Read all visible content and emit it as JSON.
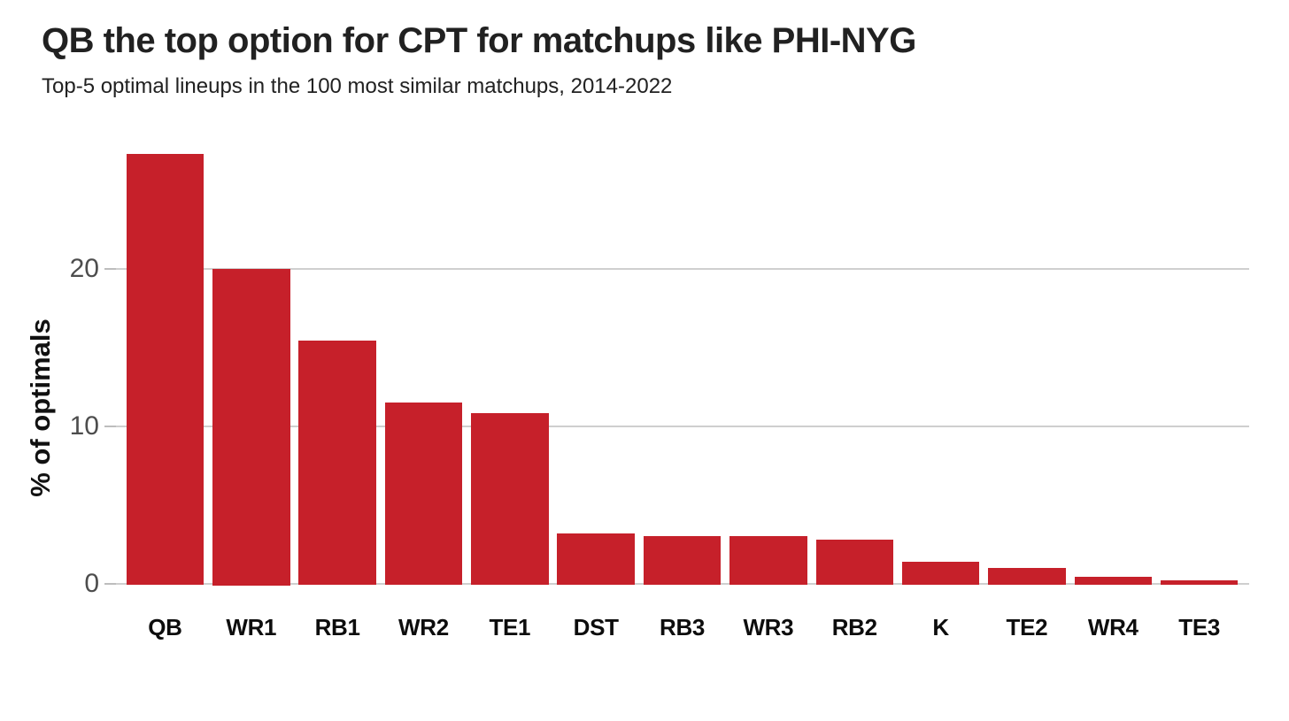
{
  "chart": {
    "title": "QB the top option for CPT for matchups like PHI-NYG",
    "subtitle": "Top-5 optimal lineups in the 100 most similar matchups, 2014-2022",
    "ylabel": "% of optimals"
  },
  "chart_data": {
    "type": "bar",
    "title": "QB the top option for CPT for matchups like PHI-NYG",
    "subtitle": "Top-5 optimal lineups in the 100 most similar matchups, 2014-2022",
    "xlabel": "",
    "ylabel": "% of optimals",
    "categories": [
      "QB",
      "WR1",
      "RB1",
      "WR2",
      "TE1",
      "DST",
      "RB3",
      "WR3",
      "RB2",
      "K",
      "TE2",
      "WR4",
      "TE3"
    ],
    "values": [
      27.3,
      20.0,
      15.4,
      11.5,
      10.8,
      3.2,
      3.0,
      3.0,
      2.8,
      1.4,
      1.0,
      0.4,
      0.2
    ],
    "yticks": [
      0,
      10,
      20
    ],
    "ylim": [
      0,
      28
    ],
    "grid": "horizontal-only",
    "legend": "none",
    "colors": {
      "bar": "#C6202A",
      "gridline": "#cfcfcf",
      "tick_mark": "#bdbdbd",
      "axis_text": "#4d4d4d",
      "category_text": "#0d0d0d",
      "title_text": "#212121",
      "background": "#ffffff"
    }
  }
}
